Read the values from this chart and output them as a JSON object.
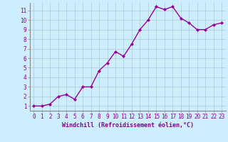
{
  "x": [
    0,
    1,
    2,
    3,
    4,
    5,
    6,
    7,
    8,
    9,
    10,
    11,
    12,
    13,
    14,
    15,
    16,
    17,
    18,
    19,
    20,
    21,
    22,
    23
  ],
  "y": [
    1.0,
    1.0,
    1.2,
    2.0,
    2.2,
    1.7,
    3.0,
    3.0,
    4.7,
    5.5,
    6.7,
    6.2,
    7.5,
    9.0,
    10.0,
    11.4,
    11.1,
    11.4,
    10.2,
    9.7,
    9.0,
    9.0,
    9.5,
    9.7
  ],
  "line_color": "#990099",
  "marker": "D",
  "marker_size": 2,
  "line_width": 1.0,
  "bg_color": "#cceeff",
  "grid_color": "#aacccc",
  "xlabel": "Windchill (Refroidissement éolien,°C)",
  "xlabel_color": "#880088",
  "tick_color": "#880088",
  "axis_color": "#888888",
  "xlim": [
    -0.5,
    23.5
  ],
  "ylim": [
    0.5,
    11.8
  ],
  "yticks": [
    1,
    2,
    3,
    4,
    5,
    6,
    7,
    8,
    9,
    10,
    11
  ],
  "xticks": [
    0,
    1,
    2,
    3,
    4,
    5,
    6,
    7,
    8,
    9,
    10,
    11,
    12,
    13,
    14,
    15,
    16,
    17,
    18,
    19,
    20,
    21,
    22,
    23
  ],
  "tick_fontsize": 5.5,
  "xlabel_fontsize": 6.0,
  "xlabel_fontweight": "bold"
}
